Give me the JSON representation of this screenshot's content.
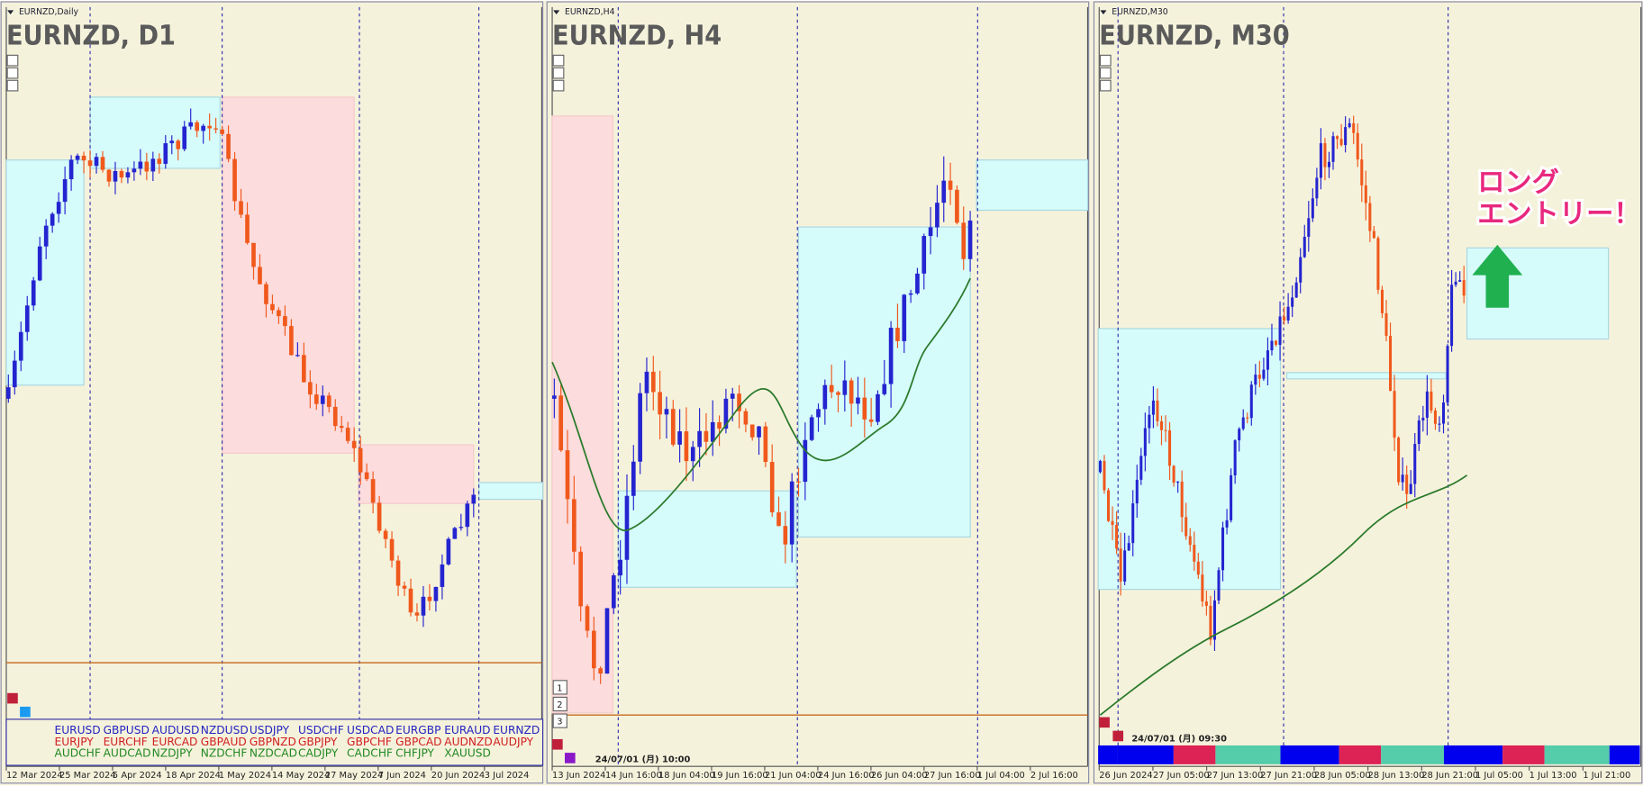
{
  "panels": [
    {
      "window_title": "EURNZD,Daily",
      "label": "EURNZD, D1",
      "dates": [
        "12 Mar 2024",
        "25 Mar 2024",
        "5 Apr 2024",
        "18 Apr 2024",
        "1 May 2024",
        "14 May 2024",
        "27 May 2024",
        "7 Jun 2024",
        "20 Jun 2024",
        "3 Jul 2024"
      ]
    },
    {
      "window_title": "EURNZD,H4",
      "label": "EURNZD, H4",
      "dates": [
        "13 Jun 2024",
        "14 Jun 16:00",
        "18 Jun 04:00",
        "19 Jun 16:00",
        "21 Jun 04:00",
        "24 Jun 16:00",
        "26 Jun 04:00",
        "27 Jun 16:00",
        "1 Jul 04:00",
        "2 Jul 16:00"
      ],
      "timestamp": "24/07/01 (月) 10:00",
      "buttons": [
        "1",
        "2",
        "3"
      ]
    },
    {
      "window_title": "EURNZD,M30",
      "label": "EURNZD, M30",
      "dates": [
        "26 Jun 2024",
        "27 Jun 05:00",
        "27 Jun 13:00",
        "27 Jun 21:00",
        "28 Jun 05:00",
        "28 Jun 13:00",
        "28 Jun 21:00",
        "1 Jul 05:00",
        "1 Jul 13:00",
        "1 Jul 21:00"
      ],
      "timestamp": "24/07/01 (月) 09:30",
      "annotation": [
        "ロング",
        "エントリー！"
      ]
    }
  ],
  "symbol_grid": [
    [
      "EURUSD",
      "GBPUSD",
      "AUDUSD",
      "NZDUSD",
      "USDJPY",
      "USDCHF",
      "USDCAD",
      "EURGBP",
      "EURAUD",
      "EURNZD"
    ],
    [
      "EURJPY",
      "EURCHF",
      "EURCAD",
      "GBPAUD",
      "GBPNZD",
      "GBPJPY",
      "GBPCHF",
      "GBPCAD",
      "AUDNZD",
      "AUDJPY"
    ],
    [
      "AUDCHF",
      "AUDCAD",
      "NZDJPY",
      "NZDCHF",
      "NZDCAD",
      "CADJPY",
      "CADCHF",
      "CHFJPY",
      "XAUUSD"
    ]
  ]
}
